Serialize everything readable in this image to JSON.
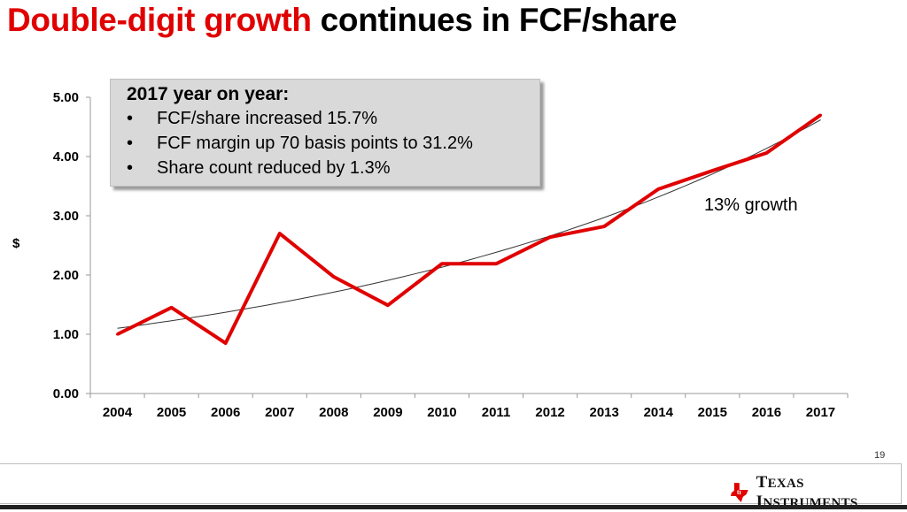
{
  "title": {
    "highlight": "Double-digit growth",
    "rest": " continues in FCF/share"
  },
  "callout": {
    "heading": "2017 year on year:",
    "bullet": "•",
    "items": [
      "FCF/share increased 15.7%",
      "FCF margin up 70 basis points to 31.2%",
      "Share count reduced by 1.3%"
    ]
  },
  "annotation": "13% growth",
  "page_number": "19",
  "logo": {
    "text": "Texas Instruments",
    "color": "#e00000"
  },
  "colors": {
    "title_accent": "#e00000",
    "series": "#e00000",
    "trendline": "#333333"
  },
  "chart_data": {
    "type": "line",
    "title": "",
    "xlabel": "",
    "ylabel": "$",
    "categories": [
      "2004",
      "2005",
      "2006",
      "2007",
      "2008",
      "2009",
      "2010",
      "2011",
      "2012",
      "2013",
      "2014",
      "2015",
      "2016",
      "2017"
    ],
    "series": [
      {
        "values": [
          1.0,
          1.45,
          0.85,
          2.7,
          1.97,
          1.49,
          2.19,
          2.19,
          2.64,
          2.82,
          3.45,
          3.76,
          4.06,
          4.7
        ]
      }
    ],
    "trendline": {
      "type": "exponential",
      "start": 1.1,
      "end": 4.62
    },
    "ylim": [
      0,
      5
    ],
    "yticks": [
      "0.00",
      "1.00",
      "2.00",
      "3.00",
      "4.00",
      "5.00"
    ],
    "grid": false,
    "legend": "none"
  }
}
